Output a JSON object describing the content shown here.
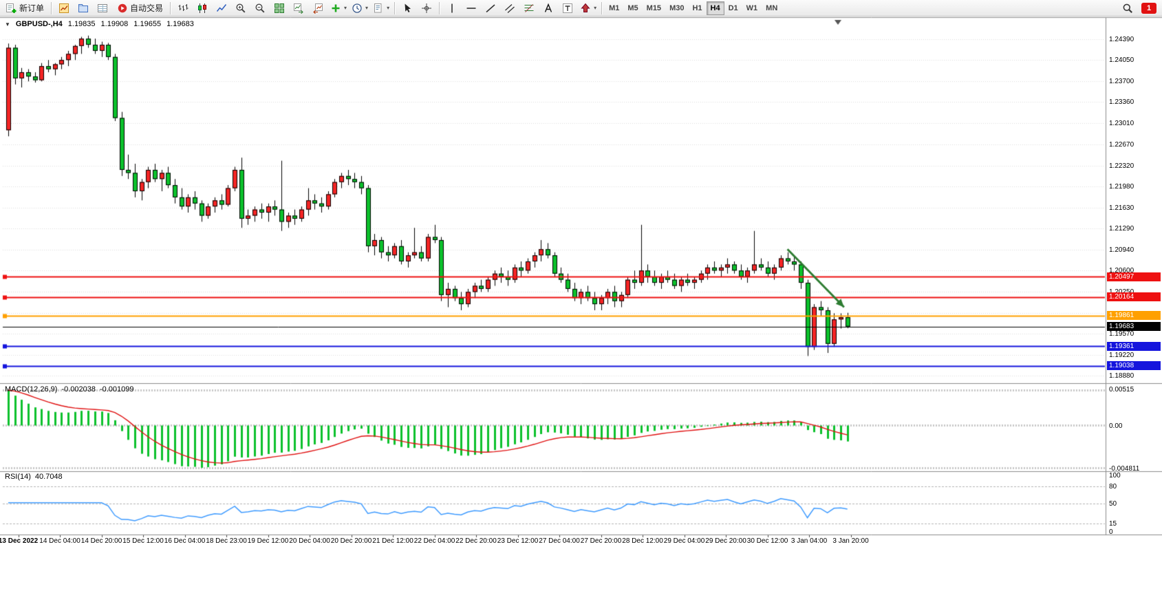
{
  "toolbar": {
    "items": [
      {
        "name": "new-order",
        "icon": "new-order",
        "label": "新订单"
      },
      {
        "type": "sep"
      },
      {
        "name": "charts",
        "icon": "chart-window"
      },
      {
        "name": "profiles",
        "icon": "profiles"
      },
      {
        "name": "data-window",
        "icon": "data-window"
      },
      {
        "name": "auto-trading",
        "icon": "auto-trading",
        "label": "自动交易"
      },
      {
        "type": "sep"
      },
      {
        "name": "bar-chart",
        "icon": "bar-chart"
      },
      {
        "name": "candlestick-chart",
        "icon": "candlestick"
      },
      {
        "name": "line-chart",
        "icon": "line-chart"
      },
      {
        "name": "zoom-in",
        "icon": "zoom-in"
      },
      {
        "name": "zoom-out",
        "icon": "zoom-out"
      },
      {
        "name": "tile-windows",
        "icon": "tile-windows"
      },
      {
        "name": "auto-scroll",
        "icon": "auto-scroll"
      },
      {
        "name": "chart-shift",
        "icon": "chart-shift"
      },
      {
        "name": "indicators",
        "icon": "add-indicator",
        "caret": true
      },
      {
        "name": "periods",
        "icon": "clock",
        "caret": true
      },
      {
        "name": "templates",
        "icon": "template",
        "caret": true
      },
      {
        "type": "sep"
      },
      {
        "name": "cursor",
        "icon": "cursor"
      },
      {
        "name": "crosshair",
        "icon": "crosshair"
      },
      {
        "type": "sep"
      },
      {
        "name": "vertical-line",
        "icon": "vertical-line"
      },
      {
        "name": "horizontal-line",
        "icon": "horizontal-line"
      },
      {
        "name": "trendline",
        "icon": "trendline"
      },
      {
        "name": "equidistant-channel",
        "icon": "channel"
      },
      {
        "name": "fibonacci",
        "icon": "fibonacci"
      },
      {
        "name": "text",
        "icon": "text-a"
      },
      {
        "name": "text-label",
        "icon": "text-t"
      },
      {
        "name": "arrows",
        "icon": "arrows",
        "caret": true
      },
      {
        "type": "sep"
      }
    ],
    "timeframes": [
      {
        "label": "M1"
      },
      {
        "label": "M5"
      },
      {
        "label": "M15"
      },
      {
        "label": "M30"
      },
      {
        "label": "H1"
      },
      {
        "label": "H4",
        "active": true
      },
      {
        "label": "D1"
      },
      {
        "label": "W1"
      },
      {
        "label": "MN"
      }
    ],
    "notification_count": "1"
  },
  "chart": {
    "symbol": "GBPUSD-,H4",
    "open": "1.19835",
    "high": "1.19908",
    "low": "1.19655",
    "close": "1.19683"
  },
  "levels": [
    {
      "name": "resistance-upper",
      "value": "1.20497",
      "price": 1.20497,
      "color": "#ee1111",
      "width": 2
    },
    {
      "name": "resistance-lower",
      "value": "1.20164",
      "price": 1.20164,
      "color": "#ee1111",
      "width": 2
    },
    {
      "name": "pivot-line",
      "value": "1.19861",
      "price": 1.19861,
      "color": "#ffa000",
      "width": 2
    },
    {
      "name": "current-price-line",
      "value": "1.19683",
      "price": 1.19683,
      "color": "#000000",
      "width": 1
    },
    {
      "name": "support-upper",
      "value": "1.19361",
      "price": 1.19361,
      "color": "#1515dd",
      "width": 2
    },
    {
      "name": "support-lower",
      "value": "1.19038",
      "price": 1.19038,
      "color": "#1515dd",
      "width": 2
    }
  ],
  "annotation": {
    "type": "arrow",
    "from_candle": 117,
    "from_price": 1.2095,
    "to_candle": 125.5,
    "to_price": 1.2,
    "color": "#2e7d32"
  },
  "colors": {
    "up_candle": "#f42525",
    "down_candle": "#0cc12c",
    "candle_outline": "#000000",
    "grid": "#dcdcdc",
    "panel_border": "#8c8c8c",
    "rsi_line": "#3e9bff",
    "macd_histogram": "#0cc12c",
    "macd_signal": "#e01010",
    "arrow": "#2e7d32",
    "toolbar_bg": "#f0f0f0",
    "notification_red": "#e11212"
  },
  "chart_data": [
    {
      "type": "candlestick",
      "name": "GBPUSD- H4",
      "ylim": [
        1.188,
        1.2465
      ],
      "y_ticks": [
        "1.24390",
        "1.24050",
        "1.23700",
        "1.23360",
        "1.23010",
        "1.22670",
        "1.22320",
        "1.21980",
        "1.21630",
        "1.21290",
        "1.20940",
        "1.20600",
        "1.20250",
        "1.19910",
        "1.19570",
        "1.19220",
        "1.18880"
      ],
      "x_labels": [
        "13 Dec 2022",
        "14 Dec 04:00",
        "14 Dec 20:00",
        "15 Dec 12:00",
        "16 Dec 04:00",
        "18 Dec 23:00",
        "19 Dec 12:00",
        "20 Dec 04:00",
        "20 Dec 20:00",
        "21 Dec 12:00",
        "22 Dec 04:00",
        "22 Dec 20:00",
        "23 Dec 12:00",
        "27 Dec 04:00",
        "27 Dec 20:00",
        "28 Dec 12:00",
        "29 Dec 04:00",
        "29 Dec 20:00",
        "30 Dec 12:00",
        "3 Jan 04:00",
        "3 Jan 20:00"
      ],
      "candles": [
        [
          1.229,
          1.2432,
          1.228,
          1.2425
        ],
        [
          1.2425,
          1.243,
          1.2365,
          1.2375
        ],
        [
          1.2375,
          1.2392,
          1.236,
          1.2385
        ],
        [
          1.2385,
          1.239,
          1.237,
          1.2378
        ],
        [
          1.2378,
          1.2385,
          1.2368,
          1.2372
        ],
        [
          1.2372,
          1.24,
          1.237,
          1.2395
        ],
        [
          1.2395,
          1.2405,
          1.2385,
          1.239
        ],
        [
          1.239,
          1.24,
          1.238,
          1.2398
        ],
        [
          1.2398,
          1.241,
          1.239,
          1.2405
        ],
        [
          1.2405,
          1.242,
          1.2395,
          1.2415
        ],
        [
          1.2415,
          1.243,
          1.2405,
          1.2428
        ],
        [
          1.2428,
          1.2443,
          1.2415,
          1.244
        ],
        [
          1.244,
          1.2445,
          1.2425,
          1.243
        ],
        [
          1.243,
          1.244,
          1.2415,
          1.242
        ],
        [
          1.242,
          1.2435,
          1.241,
          1.243
        ],
        [
          1.243,
          1.2433,
          1.2405,
          1.241
        ],
        [
          1.241,
          1.2415,
          1.2305,
          1.231
        ],
        [
          1.231,
          1.232,
          1.2215,
          1.2225
        ],
        [
          1.2225,
          1.225,
          1.221,
          1.222
        ],
        [
          1.222,
          1.2235,
          1.218,
          1.219
        ],
        [
          1.219,
          1.221,
          1.2175,
          1.2205
        ],
        [
          1.2205,
          1.223,
          1.2195,
          1.2225
        ],
        [
          1.2225,
          1.2235,
          1.2205,
          1.221
        ],
        [
          1.221,
          1.2225,
          1.219,
          1.222
        ],
        [
          1.222,
          1.223,
          1.2195,
          1.22
        ],
        [
          1.22,
          1.221,
          1.217,
          1.218
        ],
        [
          1.218,
          1.2195,
          1.216,
          1.2165
        ],
        [
          1.2165,
          1.2185,
          1.2155,
          1.218
        ],
        [
          1.218,
          1.219,
          1.216,
          1.217
        ],
        [
          1.217,
          1.2175,
          1.214,
          1.215
        ],
        [
          1.215,
          1.217,
          1.2145,
          1.2165
        ],
        [
          1.2165,
          1.218,
          1.2155,
          1.2175
        ],
        [
          1.2175,
          1.2185,
          1.216,
          1.2168
        ],
        [
          1.2168,
          1.22,
          1.2165,
          1.2195
        ],
        [
          1.2195,
          1.223,
          1.219,
          1.2225
        ],
        [
          1.2225,
          1.2245,
          1.213,
          1.2145
        ],
        [
          1.2145,
          1.216,
          1.2135,
          1.215
        ],
        [
          1.215,
          1.2165,
          1.214,
          1.216
        ],
        [
          1.216,
          1.217,
          1.2145,
          1.2155
        ],
        [
          1.2155,
          1.217,
          1.214,
          1.2165
        ],
        [
          1.2165,
          1.2175,
          1.215,
          1.216
        ],
        [
          1.216,
          1.224,
          1.2125,
          1.214
        ],
        [
          1.214,
          1.2155,
          1.213,
          1.215
        ],
        [
          1.215,
          1.216,
          1.2135,
          1.2145
        ],
        [
          1.2145,
          1.2165,
          1.214,
          1.216
        ],
        [
          1.216,
          1.2195,
          1.215,
          1.2175
        ],
        [
          1.2175,
          1.2185,
          1.216,
          1.217
        ],
        [
          1.217,
          1.218,
          1.2155,
          1.2165
        ],
        [
          1.2165,
          1.219,
          1.216,
          1.2185
        ],
        [
          1.2185,
          1.221,
          1.218,
          1.2205
        ],
        [
          1.2205,
          1.222,
          1.2195,
          1.2215
        ],
        [
          1.2215,
          1.2225,
          1.22,
          1.221
        ],
        [
          1.221,
          1.222,
          1.2195,
          1.2205
        ],
        [
          1.2205,
          1.2215,
          1.2185,
          1.2195
        ],
        [
          1.2195,
          1.22,
          1.209,
          1.21
        ],
        [
          1.21,
          1.212,
          1.2085,
          1.211
        ],
        [
          1.211,
          1.2115,
          1.208,
          1.209
        ],
        [
          1.209,
          1.21,
          1.2075,
          1.2085
        ],
        [
          1.2085,
          1.2105,
          1.208,
          1.21
        ],
        [
          1.21,
          1.211,
          1.207,
          1.2075
        ],
        [
          1.2075,
          1.209,
          1.2065,
          1.2085
        ],
        [
          1.2085,
          1.213,
          1.208,
          1.209
        ],
        [
          1.209,
          1.21,
          1.2075,
          1.208
        ],
        [
          1.208,
          1.212,
          1.2075,
          1.2115
        ],
        [
          1.2115,
          1.2135,
          1.2105,
          1.211
        ],
        [
          1.211,
          1.2115,
          1.201,
          1.202
        ],
        [
          1.202,
          1.204,
          1.2,
          1.203
        ],
        [
          1.203,
          1.2035,
          1.201,
          1.2015
        ],
        [
          1.2015,
          1.2025,
          1.1995,
          1.2005
        ],
        [
          1.2005,
          1.203,
          1.2,
          1.2025
        ],
        [
          1.2025,
          1.204,
          1.2015,
          1.2035
        ],
        [
          1.2035,
          1.2045,
          1.2025,
          1.203
        ],
        [
          1.203,
          1.205,
          1.2025,
          1.2045
        ],
        [
          1.2045,
          1.206,
          1.2035,
          1.2055
        ],
        [
          1.2055,
          1.2065,
          1.204,
          1.205
        ],
        [
          1.205,
          1.206,
          1.2035,
          1.2045
        ],
        [
          1.2045,
          1.207,
          1.204,
          1.2065
        ],
        [
          1.2065,
          1.2075,
          1.205,
          1.206
        ],
        [
          1.206,
          1.208,
          1.2055,
          1.2075
        ],
        [
          1.2075,
          1.209,
          1.2065,
          1.2085
        ],
        [
          1.2085,
          1.211,
          1.2075,
          1.2095
        ],
        [
          1.2095,
          1.2105,
          1.208,
          1.2085
        ],
        [
          1.2085,
          1.209,
          1.205,
          1.2055
        ],
        [
          1.2055,
          1.2065,
          1.204,
          1.2045
        ],
        [
          1.2045,
          1.2055,
          1.2025,
          1.203
        ],
        [
          1.203,
          1.204,
          1.201,
          1.2015
        ],
        [
          1.2015,
          1.203,
          1.2005,
          1.2025
        ],
        [
          1.2025,
          1.2035,
          1.201,
          1.2015
        ],
        [
          1.2015,
          1.2025,
          1.1995,
          1.2005
        ],
        [
          1.2005,
          1.202,
          1.1995,
          1.2015
        ],
        [
          1.2015,
          1.203,
          1.2005,
          1.2025
        ],
        [
          1.2025,
          1.2035,
          1.2,
          1.201
        ],
        [
          1.201,
          1.2025,
          1.2,
          1.202
        ],
        [
          1.202,
          1.205,
          1.2015,
          1.2045
        ],
        [
          1.2045,
          1.206,
          1.203,
          1.204
        ],
        [
          1.204,
          1.2135,
          1.2035,
          1.206
        ],
        [
          1.206,
          1.207,
          1.204,
          1.205
        ],
        [
          1.205,
          1.206,
          1.2035,
          1.204
        ],
        [
          1.204,
          1.2055,
          1.203,
          1.205
        ],
        [
          1.205,
          1.206,
          1.204,
          1.2045
        ],
        [
          1.2045,
          1.2055,
          1.203,
          1.2035
        ],
        [
          1.2035,
          1.205,
          1.2025,
          1.2045
        ],
        [
          1.2045,
          1.2055,
          1.2035,
          1.204
        ],
        [
          1.204,
          1.205,
          1.203,
          1.2045
        ],
        [
          1.2045,
          1.206,
          1.204,
          1.2055
        ],
        [
          1.2055,
          1.207,
          1.2045,
          1.2065
        ],
        [
          1.2065,
          1.2075,
          1.2055,
          1.206
        ],
        [
          1.206,
          1.207,
          1.205,
          1.2065
        ],
        [
          1.2065,
          1.208,
          1.2055,
          1.207
        ],
        [
          1.207,
          1.2075,
          1.2055,
          1.206
        ],
        [
          1.206,
          1.207,
          1.2045,
          1.205
        ],
        [
          1.205,
          1.2065,
          1.204,
          1.206
        ],
        [
          1.206,
          1.2125,
          1.2055,
          1.207
        ],
        [
          1.207,
          1.208,
          1.206,
          1.2065
        ],
        [
          1.2065,
          1.2075,
          1.205,
          1.2055
        ],
        [
          1.2055,
          1.207,
          1.2045,
          1.2065
        ],
        [
          1.2065,
          1.2085,
          1.206,
          1.208
        ],
        [
          1.208,
          1.209,
          1.207,
          1.2075
        ],
        [
          1.2075,
          1.2085,
          1.206,
          1.207
        ],
        [
          1.207,
          1.2075,
          1.203,
          1.204
        ],
        [
          1.204,
          1.2045,
          1.192,
          1.1935
        ],
        [
          1.1935,
          1.2005,
          1.193,
          1.2
        ],
        [
          1.2,
          1.201,
          1.1985,
          1.1995
        ],
        [
          1.1995,
          1.2,
          1.1925,
          1.194
        ],
        [
          1.194,
          1.199,
          1.1935,
          1.198
        ],
        [
          1.198,
          1.199,
          1.1965,
          1.19835
        ],
        [
          1.19835,
          1.19908,
          1.19655,
          1.19683
        ]
      ]
    },
    {
      "type": "bar",
      "name": "MACD(12,26,9)",
      "macd_value": "-0.002038",
      "signal_value": "-0.001099",
      "params": {
        "fast": 12,
        "slow": 26,
        "signal": 9
      },
      "axis_labels": [
        "0.00515",
        "0.00",
        "-0.004811"
      ]
    },
    {
      "type": "line",
      "name": "RSI(14)",
      "value": "40.7048",
      "params": {
        "period": 14
      },
      "ylim": [
        0,
        100
      ],
      "guide_levels": [
        80,
        50,
        15
      ],
      "axis_labels": [
        "100",
        "80",
        "50",
        "15",
        "0"
      ]
    }
  ]
}
